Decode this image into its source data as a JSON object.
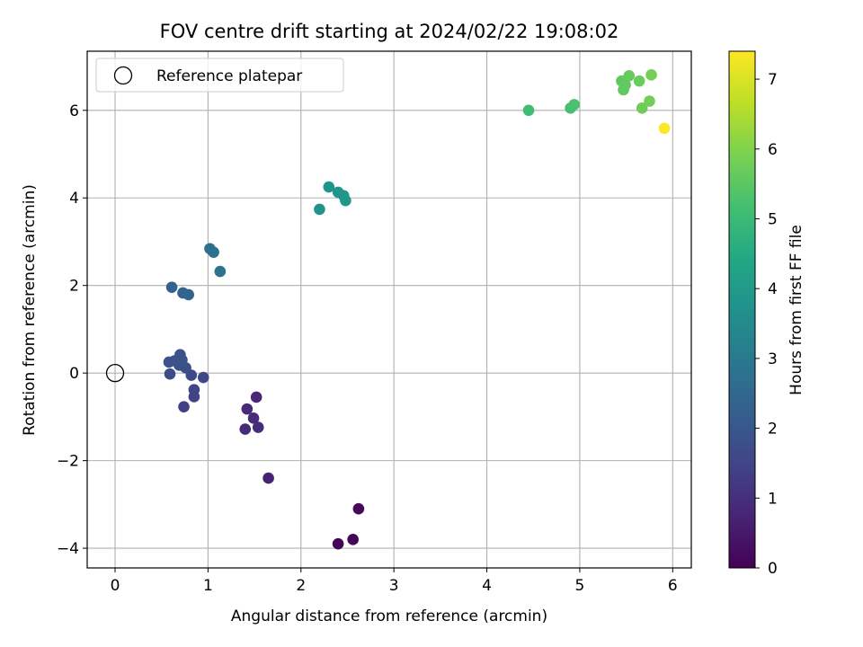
{
  "chart_data": {
    "type": "scatter",
    "title": "FOV centre drift starting at 2024/02/22 19:08:02",
    "xlabel": "Angular distance from reference (arcmin)",
    "ylabel": "Rotation from reference (arcmin)",
    "xlim": [
      -0.3,
      6.2
    ],
    "ylim": [
      -4.45,
      7.35
    ],
    "xticks": [
      0,
      1,
      2,
      3,
      4,
      5,
      6
    ],
    "xtick_labels": [
      "0",
      "1",
      "2",
      "3",
      "4",
      "5",
      "6"
    ],
    "yticks": [
      -4,
      -2,
      0,
      2,
      4,
      6
    ],
    "ytick_labels": [
      "−4",
      "−2",
      "0",
      "2",
      "4",
      "6"
    ],
    "grid": true,
    "legend": {
      "placement": "top-left",
      "label": "Reference platepar"
    },
    "reference_point": {
      "x": 0,
      "y": 0
    },
    "colorbar": {
      "label": "Hours from first FF file",
      "range": [
        0,
        7.4
      ],
      "ticks": [
        0,
        1,
        2,
        3,
        4,
        5,
        6,
        7
      ],
      "tick_labels": [
        "0",
        "1",
        "2",
        "3",
        "4",
        "5",
        "6",
        "7"
      ],
      "colormap": "viridis"
    },
    "points": [
      {
        "x": 2.4,
        "y": -3.9,
        "hours": 0.05
      },
      {
        "x": 2.56,
        "y": -3.8,
        "hours": 0.1
      },
      {
        "x": 2.62,
        "y": -3.1,
        "hours": 0.15
      },
      {
        "x": 1.65,
        "y": -2.4,
        "hours": 0.7
      },
      {
        "x": 1.52,
        "y": -0.55,
        "hours": 0.8
      },
      {
        "x": 1.42,
        "y": -0.82,
        "hours": 0.85
      },
      {
        "x": 1.49,
        "y": -1.03,
        "hours": 0.9
      },
      {
        "x": 1.4,
        "y": -1.28,
        "hours": 0.9
      },
      {
        "x": 1.54,
        "y": -1.24,
        "hours": 0.95
      },
      {
        "x": 0.74,
        "y": -0.77,
        "hours": 1.4
      },
      {
        "x": 0.85,
        "y": -0.54,
        "hours": 1.45
      },
      {
        "x": 0.85,
        "y": -0.38,
        "hours": 1.5
      },
      {
        "x": 0.95,
        "y": -0.1,
        "hours": 1.6
      },
      {
        "x": 0.82,
        "y": -0.05,
        "hours": 1.65
      },
      {
        "x": 0.59,
        "y": -0.02,
        "hours": 1.7
      },
      {
        "x": 0.76,
        "y": 0.12,
        "hours": 1.75
      },
      {
        "x": 0.69,
        "y": 0.18,
        "hours": 1.8
      },
      {
        "x": 0.58,
        "y": 0.25,
        "hours": 1.85
      },
      {
        "x": 0.64,
        "y": 0.28,
        "hours": 1.85
      },
      {
        "x": 0.72,
        "y": 0.3,
        "hours": 1.9
      },
      {
        "x": 0.7,
        "y": 0.42,
        "hours": 1.9
      },
      {
        "x": 0.61,
        "y": 1.96,
        "hours": 2.3
      },
      {
        "x": 0.73,
        "y": 1.83,
        "hours": 2.35
      },
      {
        "x": 0.79,
        "y": 1.79,
        "hours": 2.4
      },
      {
        "x": 1.02,
        "y": 2.84,
        "hours": 2.7
      },
      {
        "x": 1.06,
        "y": 2.76,
        "hours": 2.75
      },
      {
        "x": 1.13,
        "y": 2.32,
        "hours": 2.8
      },
      {
        "x": 2.2,
        "y": 3.74,
        "hours": 3.75
      },
      {
        "x": 2.3,
        "y": 4.25,
        "hours": 3.8
      },
      {
        "x": 2.4,
        "y": 4.13,
        "hours": 3.85
      },
      {
        "x": 2.46,
        "y": 4.05,
        "hours": 3.85
      },
      {
        "x": 2.48,
        "y": 3.94,
        "hours": 3.9
      },
      {
        "x": 4.45,
        "y": 6.0,
        "hours": 5.1
      },
      {
        "x": 4.9,
        "y": 6.05,
        "hours": 5.2
      },
      {
        "x": 4.94,
        "y": 6.13,
        "hours": 5.25
      },
      {
        "x": 5.45,
        "y": 6.67,
        "hours": 5.55
      },
      {
        "x": 5.47,
        "y": 6.47,
        "hours": 5.6
      },
      {
        "x": 5.49,
        "y": 6.58,
        "hours": 5.6
      },
      {
        "x": 5.53,
        "y": 6.79,
        "hours": 5.65
      },
      {
        "x": 5.64,
        "y": 6.67,
        "hours": 5.7
      },
      {
        "x": 5.67,
        "y": 6.05,
        "hours": 5.75
      },
      {
        "x": 5.75,
        "y": 6.21,
        "hours": 5.8
      },
      {
        "x": 5.77,
        "y": 6.81,
        "hours": 5.85
      },
      {
        "x": 5.91,
        "y": 5.59,
        "hours": 7.4
      }
    ]
  }
}
